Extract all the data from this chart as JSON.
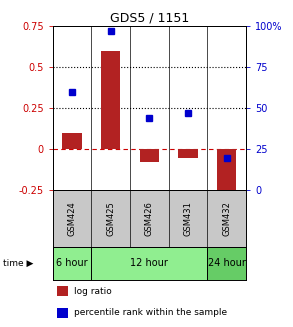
{
  "title": "GDS5 / 1151",
  "samples": [
    "GSM424",
    "GSM425",
    "GSM426",
    "GSM431",
    "GSM432"
  ],
  "log_ratio": [
    0.1,
    0.6,
    -0.08,
    -0.055,
    -0.3
  ],
  "percentile_rank": [
    0.6,
    0.97,
    0.44,
    0.47,
    0.2
  ],
  "ylim_left": [
    -0.25,
    0.75
  ],
  "ylim_right": [
    0,
    100
  ],
  "yticks_left": [
    -0.25,
    0,
    0.25,
    0.5,
    0.75
  ],
  "yticks_right": [
    0,
    25,
    50,
    75,
    100
  ],
  "ytick_labels_left": [
    "-0.25",
    "0",
    "0.25",
    "0.5",
    "0.75"
  ],
  "ytick_labels_right": [
    "0",
    "25",
    "50",
    "75",
    "100%"
  ],
  "hlines_dotted": [
    0.25,
    0.5
  ],
  "hline_dashed": 0,
  "bar_color": "#B22222",
  "dot_color": "#0000CD",
  "bar_width": 0.5,
  "time_groups_order": [
    "6 hour",
    "12 hour",
    "24 hour"
  ],
  "time_groups": {
    "6 hour": [
      "GSM424"
    ],
    "12 hour": [
      "GSM425",
      "GSM426",
      "GSM431"
    ],
    "24 hour": [
      "GSM432"
    ]
  },
  "time_color_light": "#90EE90",
  "time_color_dark": "#5DD35D",
  "sample_bg_color": "#C8C8C8",
  "legend_labels": [
    "log ratio",
    "percentile rank within the sample"
  ],
  "legend_colors": [
    "#B22222",
    "#0000CD"
  ],
  "tick_label_color_left": "#CC0000",
  "tick_label_color_right": "#0000CC",
  "title_fontsize": 9,
  "tick_fontsize": 7,
  "sample_fontsize": 6,
  "time_fontsize": 7,
  "legend_fontsize": 6.5
}
